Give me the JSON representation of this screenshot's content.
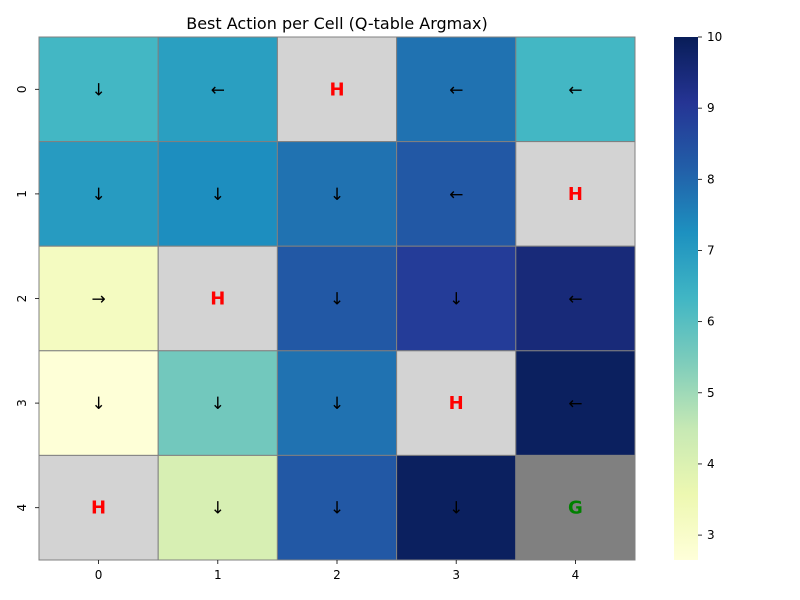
{
  "chart_data": {
    "type": "heatmap",
    "title": "Best Action per Cell (Q-table Argmax)",
    "xlabel": "",
    "ylabel": "",
    "x_categories": [
      "0",
      "1",
      "2",
      "3",
      "4"
    ],
    "y_categories": [
      "0",
      "1",
      "2",
      "3",
      "4"
    ],
    "values": [
      [
        6.3,
        6.9,
        null,
        7.8,
        6.3
      ],
      [
        7.0,
        7.3,
        7.8,
        8.3,
        null
      ],
      [
        3.2,
        null,
        8.3,
        8.9,
        9.5
      ],
      [
        2.7,
        5.6,
        7.8,
        null,
        9.9
      ],
      [
        null,
        4.1,
        8.3,
        9.9,
        null
      ]
    ],
    "cell_labels": [
      [
        "↓",
        "←",
        "H",
        "←",
        "←"
      ],
      [
        "↓",
        "↓",
        "↓",
        "←",
        "H"
      ],
      [
        "→",
        "H",
        "↓",
        "↓",
        "←"
      ],
      [
        "↓",
        "↓",
        "↓",
        "H",
        "←"
      ],
      [
        "H",
        "↓",
        "↓",
        "↓",
        "G"
      ]
    ],
    "hole_color": "#d3d3d3",
    "goal_color": "#808080",
    "hole_label_color": "#ff0000",
    "goal_label_color": "#008000",
    "colorbar": {
      "colormap": "YlGnBu",
      "min": 2.65,
      "max": 10,
      "ticks": [
        3,
        4,
        5,
        6,
        7,
        8,
        9,
        10
      ]
    },
    "grid": false,
    "legend": "colorbar-right"
  }
}
